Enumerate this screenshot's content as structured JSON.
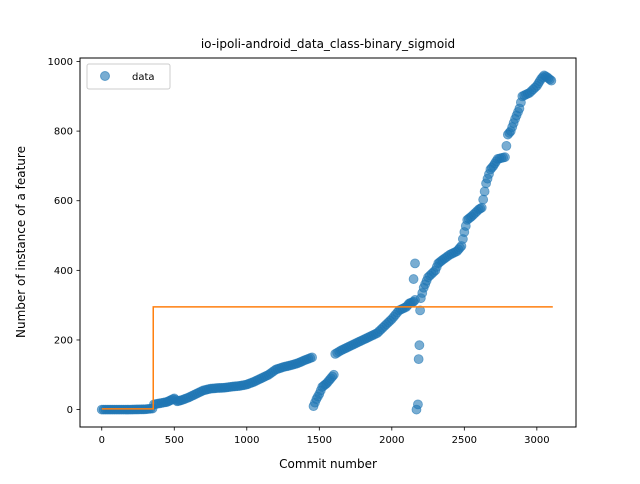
{
  "chart_data": {
    "type": "scatter",
    "title": "io-ipoli-android_data_class-binary_sigmoid",
    "xlabel": "Commit number",
    "ylabel": "Number of instance of a feature",
    "xlim": [
      -150,
      3270
    ],
    "ylim": [
      -50,
      1010
    ],
    "xticks": [
      0,
      500,
      1000,
      1500,
      2000,
      2500,
      3000
    ],
    "yticks": [
      0,
      200,
      400,
      600,
      800,
      1000
    ],
    "legend": {
      "position": "top-left",
      "entries": [
        "data"
      ]
    },
    "grid": false,
    "colors": {
      "data": "#1f77b4",
      "fit": "#ff7f0e"
    },
    "series": [
      {
        "name": "data",
        "kind": "scatter",
        "segments": [
          [
            [
              0,
              0
            ],
            [
              100,
              0
            ],
            [
              200,
              0
            ],
            [
              300,
              1
            ],
            [
              350,
              3
            ],
            [
              360,
              15
            ],
            [
              400,
              18
            ],
            [
              450,
              22
            ],
            [
              480,
              28
            ],
            [
              500,
              32
            ],
            [
              520,
              24
            ],
            [
              550,
              27
            ],
            [
              600,
              35
            ],
            [
              650,
              45
            ],
            [
              700,
              55
            ],
            [
              750,
              60
            ],
            [
              800,
              62
            ],
            [
              850,
              63
            ],
            [
              900,
              66
            ],
            [
              950,
              68
            ],
            [
              1000,
              72
            ],
            [
              1050,
              80
            ],
            [
              1100,
              90
            ],
            [
              1150,
              100
            ],
            [
              1200,
              115
            ],
            [
              1250,
              122
            ],
            [
              1300,
              127
            ],
            [
              1350,
              133
            ],
            [
              1400,
              142
            ],
            [
              1450,
              150
            ]
          ],
          [
            [
              1460,
              10
            ],
            [
              1480,
              30
            ],
            [
              1500,
              45
            ],
            [
              1520,
              65
            ],
            [
              1550,
              75
            ],
            [
              1580,
              90
            ],
            [
              1600,
              100
            ]
          ],
          [
            [
              1610,
              160
            ],
            [
              1650,
              170
            ],
            [
              1700,
              180
            ],
            [
              1750,
              190
            ],
            [
              1800,
              200
            ],
            [
              1850,
              210
            ],
            [
              1900,
              220
            ],
            [
              1950,
              240
            ],
            [
              2000,
              260
            ],
            [
              2050,
              285
            ],
            [
              2100,
              295
            ],
            [
              2120,
              305
            ],
            [
              2150,
              310
            ],
            [
              2160,
              315
            ]
          ],
          [
            [
              2150,
              375
            ],
            [
              2160,
              420
            ]
          ],
          [
            [
              2170,
              0
            ],
            [
              2180,
              15
            ],
            [
              2185,
              145
            ],
            [
              2190,
              185
            ],
            [
              2195,
              285
            ]
          ],
          [
            [
              2200,
              320
            ],
            [
              2220,
              350
            ],
            [
              2250,
              380
            ],
            [
              2300,
              400
            ],
            [
              2320,
              420
            ],
            [
              2350,
              430
            ],
            [
              2400,
              445
            ],
            [
              2450,
              455
            ],
            [
              2480,
              470
            ],
            [
              2500,
              510
            ],
            [
              2520,
              545
            ],
            [
              2550,
              555
            ],
            [
              2600,
              575
            ],
            [
              2620,
              580
            ],
            [
              2650,
              650
            ],
            [
              2680,
              690
            ],
            [
              2700,
              700
            ],
            [
              2730,
              720
            ],
            [
              2780,
              725
            ],
            [
              2800,
              790
            ],
            [
              2820,
              800
            ],
            [
              2850,
              835
            ],
            [
              2880,
              865
            ],
            [
              2900,
              900
            ],
            [
              2950,
              910
            ],
            [
              3000,
              930
            ],
            [
              3030,
              950
            ],
            [
              3050,
              960
            ],
            [
              3070,
              955
            ],
            [
              3100,
              945
            ]
          ]
        ]
      },
      {
        "name": "",
        "kind": "step-line",
        "points": [
          [
            0,
            2
          ],
          [
            355,
            2
          ],
          [
            355,
            295
          ],
          [
            3110,
            295
          ]
        ]
      }
    ]
  }
}
